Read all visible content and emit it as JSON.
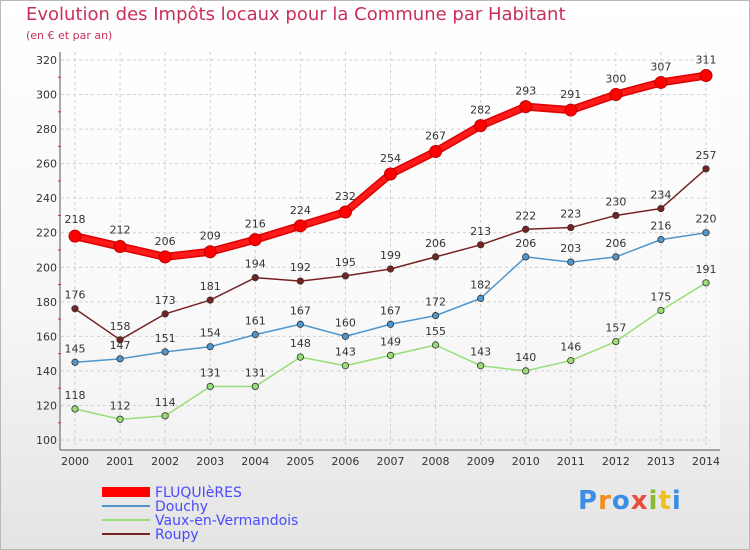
{
  "title": "Evolution des Impôts locaux pour la Commune par Habitant",
  "subtitle": "(en € et par an)",
  "logo": "Proxiti",
  "chart_data": {
    "type": "line",
    "title": "Evolution des Impôts locaux pour la Commune par Habitant",
    "subtitle": "(en € et par an)",
    "xlabel": "",
    "ylabel": "",
    "x": [
      "2000",
      "2001",
      "2002",
      "2003",
      "2004",
      "2005",
      "2006",
      "2007",
      "2008",
      "2009",
      "2010",
      "2011",
      "2012",
      "2013",
      "2014"
    ],
    "ylim": [
      100,
      320
    ],
    "yticks": [
      100,
      120,
      140,
      160,
      180,
      200,
      220,
      240,
      260,
      280,
      300,
      320
    ],
    "grid": true,
    "legend_position": "bottom-left",
    "series": [
      {
        "name": "FLUQUIèRES",
        "color": "#ff0000",
        "values": [
          218,
          212,
          206,
          209,
          216,
          224,
          232,
          254,
          267,
          282,
          293,
          291,
          300,
          307,
          311
        ]
      },
      {
        "name": "Douchy",
        "color": "#4f96cc",
        "values": [
          145,
          147,
          151,
          154,
          161,
          167,
          160,
          167,
          172,
          182,
          206,
          203,
          206,
          216,
          220
        ]
      },
      {
        "name": "Vaux-en-Vermandois",
        "color": "#99dd77",
        "values": [
          118,
          112,
          114,
          131,
          131,
          148,
          143,
          149,
          155,
          143,
          140,
          146,
          157,
          175,
          191
        ]
      },
      {
        "name": "Roupy",
        "color": "#772222",
        "values": [
          176,
          158,
          173,
          181,
          194,
          192,
          195,
          199,
          206,
          213,
          222,
          223,
          230,
          234,
          257
        ]
      }
    ]
  }
}
